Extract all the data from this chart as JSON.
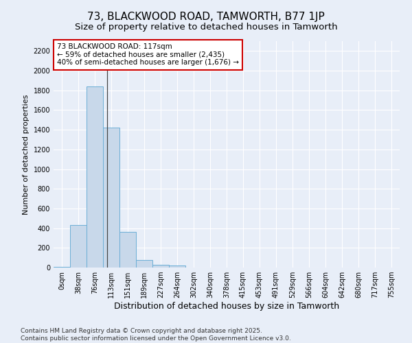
{
  "title": "73, BLACKWOOD ROAD, TAMWORTH, B77 1JP",
  "subtitle": "Size of property relative to detached houses in Tamworth",
  "xlabel": "Distribution of detached houses by size in Tamworth",
  "ylabel": "Number of detached properties",
  "bar_color": "#c8d8ea",
  "bar_edge_color": "#6baed6",
  "background_color": "#e8eef8",
  "grid_color": "#ffffff",
  "categories": [
    "0sqm",
    "38sqm",
    "76sqm",
    "113sqm",
    "151sqm",
    "189sqm",
    "227sqm",
    "264sqm",
    "302sqm",
    "340sqm",
    "378sqm",
    "415sqm",
    "453sqm",
    "491sqm",
    "529sqm",
    "566sqm",
    "604sqm",
    "642sqm",
    "680sqm",
    "717sqm",
    "755sqm"
  ],
  "values": [
    10,
    430,
    1840,
    1420,
    360,
    80,
    30,
    20,
    0,
    0,
    0,
    0,
    0,
    0,
    0,
    0,
    0,
    0,
    0,
    0,
    0
  ],
  "ylim": [
    0,
    2300
  ],
  "yticks": [
    0,
    200,
    400,
    600,
    800,
    1000,
    1200,
    1400,
    1600,
    1800,
    2000,
    2200
  ],
  "annotation_text": "73 BLACKWOOD ROAD: 117sqm\n← 59% of detached houses are smaller (2,435)\n40% of semi-detached houses are larger (1,676) →",
  "vline_x_idx": 2.77,
  "annotation_box_facecolor": "#ffffff",
  "annotation_box_edgecolor": "#cc0000",
  "footnote": "Contains HM Land Registry data © Crown copyright and database right 2025.\nContains public sector information licensed under the Open Government Licence v3.0.",
  "title_fontsize": 11,
  "subtitle_fontsize": 9.5,
  "xlabel_fontsize": 9,
  "ylabel_fontsize": 8,
  "tick_fontsize": 7,
  "annotation_fontsize": 7.5,
  "footnote_fontsize": 6.5
}
